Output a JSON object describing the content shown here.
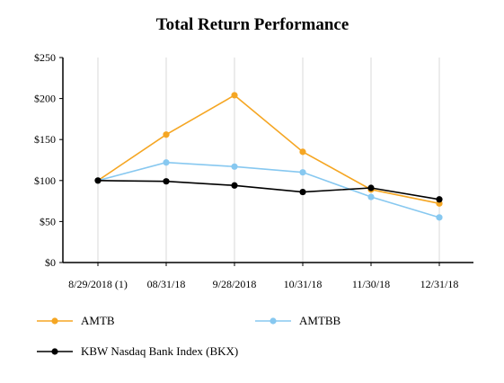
{
  "chart_data": {
    "type": "line",
    "title": "Total Return Performance",
    "xlabel": "",
    "ylabel": "",
    "categories": [
      "8/29/2018 (1)",
      "08/31/18",
      "9/28/2018",
      "10/31/18",
      "11/30/18",
      "12/31/18"
    ],
    "ylim": [
      0,
      250
    ],
    "yticks": [
      0,
      50,
      100,
      150,
      200,
      250
    ],
    "ytick_labels": [
      "$0",
      "$50",
      "$100",
      "$150",
      "$200",
      "$250"
    ],
    "grid": "vertical",
    "legend_position": "bottom",
    "series": [
      {
        "name": "AMTB",
        "color": "#F5A623",
        "values": [
          100,
          156,
          204,
          135,
          89,
          72
        ]
      },
      {
        "name": "AMTBB",
        "color": "#87C8F0",
        "values": [
          100,
          122,
          117,
          110,
          80,
          55
        ]
      },
      {
        "name": "KBW Nasdaq Bank Index (BKX)",
        "color": "#000000",
        "values": [
          100,
          99,
          94,
          86,
          91,
          77
        ]
      }
    ]
  }
}
